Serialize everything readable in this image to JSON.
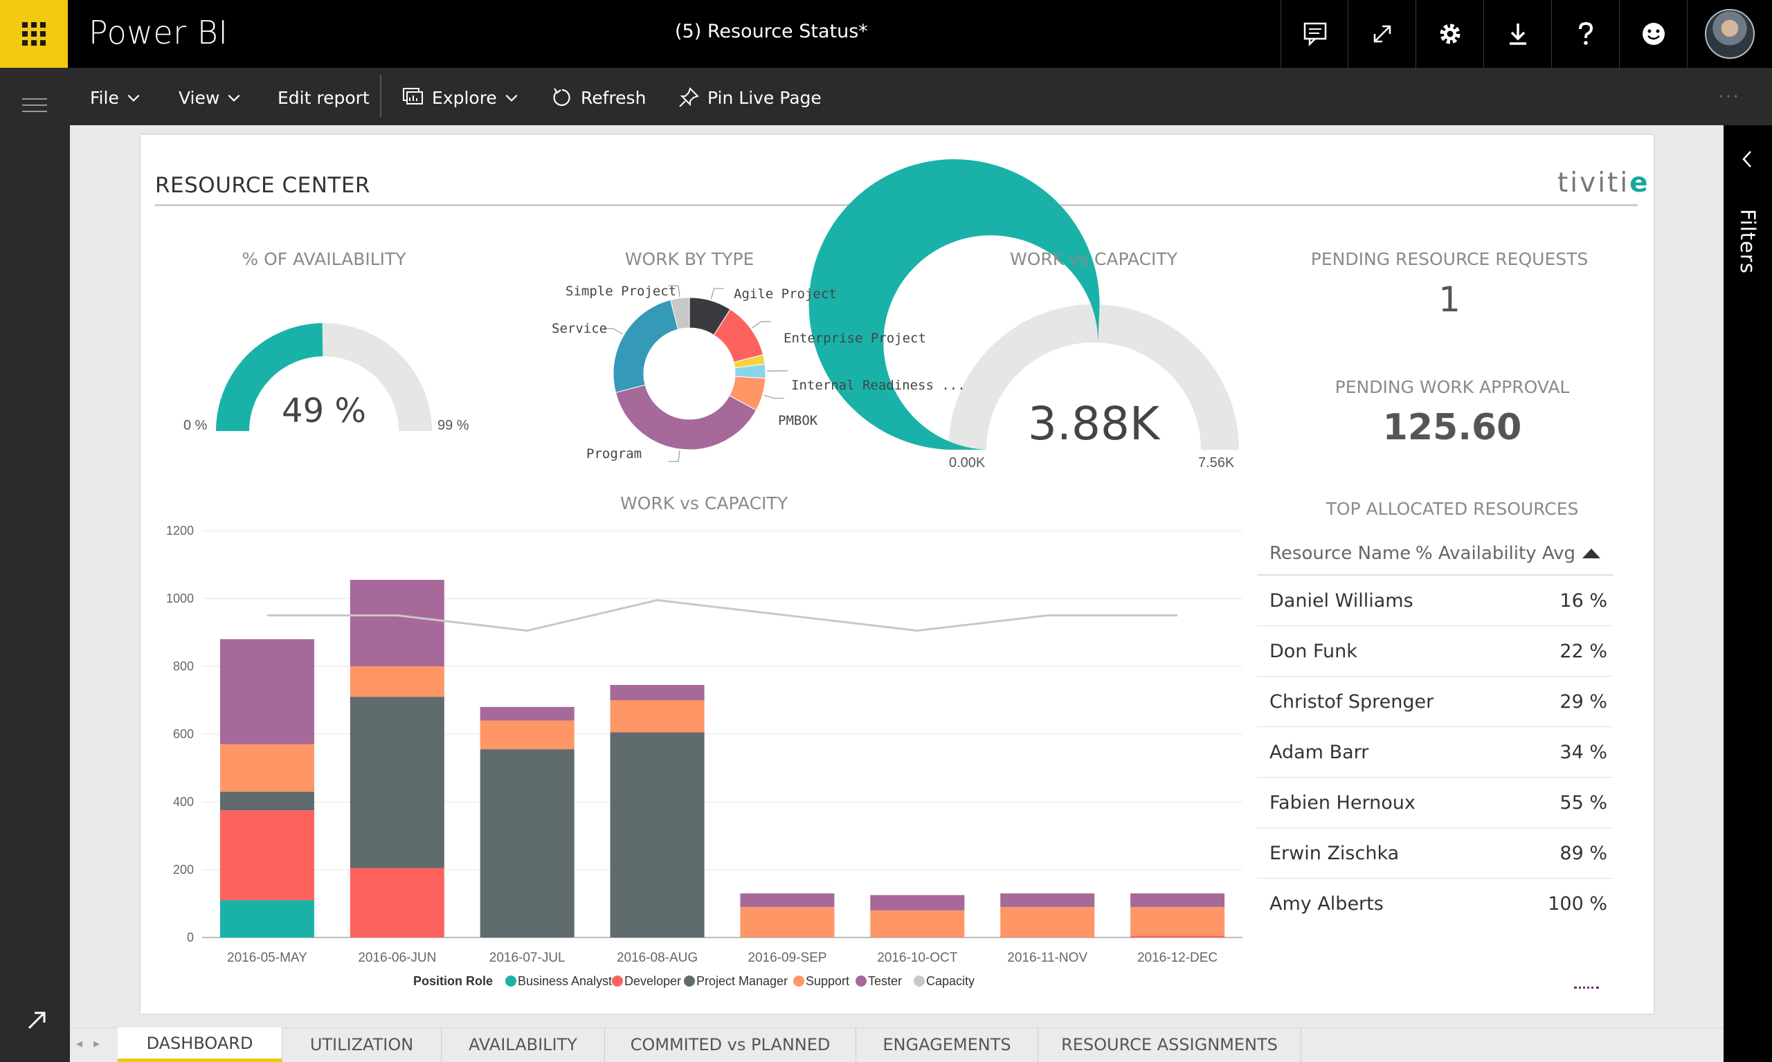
{
  "app": {
    "brand": "Power BI",
    "doc_title": "(5) Resource Status*"
  },
  "topbar_icons": [
    "comment-icon",
    "fullscreen-icon",
    "gear-icon",
    "download-icon",
    "help-icon",
    "smiley-icon"
  ],
  "commands": {
    "file": "File",
    "view": "View",
    "edit_report": "Edit report",
    "explore": "Explore",
    "refresh": "Refresh",
    "pin_live_page": "Pin Live Page",
    "more": "···"
  },
  "filters": {
    "label": "Filters"
  },
  "report": {
    "title": "RESOURCE CENTER",
    "logo": {
      "text": "tiviti",
      "mark": "e"
    },
    "availability": {
      "title": "% OF AVAILABILITY",
      "value": "49 %",
      "min": "0 %",
      "max": "99 %",
      "level": 0.495,
      "color": "#1ab2a8"
    },
    "work_gauge": {
      "title": "WORK vs CAPACITY",
      "value": "3.88K",
      "min": "0.00K",
      "max": "7.56K",
      "level": 0.513,
      "color": "#1ab2a8"
    },
    "pending_requests": {
      "title": "PENDING RESOURCE REQUESTS",
      "value": "1"
    },
    "pending_approval": {
      "title": "PENDING WORK APPROVAL",
      "value": "125.60"
    },
    "work_by_type": {
      "title": "WORK BY TYPE",
      "slices": [
        {
          "label": "Agile Project",
          "value": 9,
          "color": "#3b3b3f"
        },
        {
          "label": "Enterprise Project",
          "value": 12,
          "color": "#fd625e"
        },
        {
          "label": "",
          "value": 2,
          "color": "#f5d33f"
        },
        {
          "label": "Internal Readiness ...",
          "value": 3,
          "color": "#8ad4eb"
        },
        {
          "label": "PMBOK",
          "value": 7,
          "color": "#fe9666"
        },
        {
          "label": "Program",
          "value": 38,
          "color": "#a66999"
        },
        {
          "label": "Service",
          "value": 25,
          "color": "#3599b8"
        },
        {
          "label": "Simple Project",
          "value": 4,
          "color": "#c8c8c8"
        }
      ]
    },
    "top_resources": {
      "title": "TOP ALLOCATED RESOURCES",
      "col_name": "Resource Name",
      "col_value": "% Availability Avg",
      "rows": [
        {
          "name": "Daniel Williams",
          "value": "16 %"
        },
        {
          "name": "Don Funk",
          "value": "22 %"
        },
        {
          "name": "Christof Sprenger",
          "value": "29 %"
        },
        {
          "name": "Adam Barr",
          "value": "34 %"
        },
        {
          "name": "Fabien Hernoux",
          "value": "55 %"
        },
        {
          "name": "Erwin Zischka",
          "value": "89 %"
        },
        {
          "name": "Amy Alberts",
          "value": "100 %"
        }
      ]
    }
  },
  "chart_data": {
    "type": "bar",
    "stacked": true,
    "title": "WORK vs CAPACITY",
    "xlabel": "",
    "ylabel": "",
    "ylim": [
      0,
      1200
    ],
    "yticks": [
      0,
      200,
      400,
      600,
      800,
      1000,
      1200
    ],
    "grid": true,
    "legend_title": "Position Role",
    "legend_position": "bottom",
    "categories": [
      "2016-05-MAY",
      "2016-06-JUN",
      "2016-07-JUL",
      "2016-08-AUG",
      "2016-09-SEP",
      "2016-10-OCT",
      "2016-11-NOV",
      "2016-12-DEC"
    ],
    "series": [
      {
        "name": "Business Analyst",
        "color": "#1ab2a8",
        "values": [
          110,
          0,
          0,
          0,
          0,
          0,
          0,
          0
        ]
      },
      {
        "name": "Developer",
        "color": "#fd625e",
        "values": [
          265,
          205,
          0,
          0,
          0,
          0,
          0,
          5
        ]
      },
      {
        "name": "Project Manager",
        "color": "#5f6b6d",
        "values": [
          55,
          505,
          555,
          605,
          0,
          0,
          0,
          0
        ]
      },
      {
        "name": "Support",
        "color": "#fe9666",
        "values": [
          140,
          90,
          85,
          95,
          90,
          80,
          90,
          85
        ]
      },
      {
        "name": "Tester",
        "color": "#a66999",
        "values": [
          310,
          255,
          40,
          45,
          40,
          45,
          40,
          40
        ]
      }
    ],
    "line": {
      "name": "Capacity",
      "color": "#c8c8c8",
      "values": [
        950,
        950,
        905,
        995,
        950,
        905,
        950,
        950
      ]
    }
  },
  "tabs": [
    {
      "label": "DASHBOARD",
      "active": true
    },
    {
      "label": "UTILIZATION",
      "active": false
    },
    {
      "label": "AVAILABILITY",
      "active": false
    },
    {
      "label": "COMMITED vs PLANNED",
      "active": false
    },
    {
      "label": "ENGAGEMENTS",
      "active": false
    },
    {
      "label": "RESOURCE ASSIGNMENTS",
      "active": false
    }
  ],
  "tab_nav": {
    "prev": "◂",
    "next": "▸"
  }
}
